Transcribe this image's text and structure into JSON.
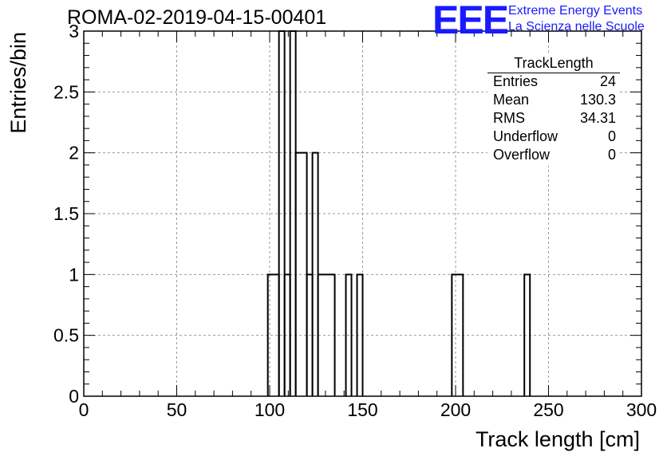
{
  "title": "ROMA-02-2019-04-15-00401",
  "logo": {
    "mark": "EEE",
    "line1": "Extreme Energy Events",
    "line2": "La Scienza nelle Scuole",
    "color": "#1a1aff"
  },
  "stats": {
    "title": "TrackLength",
    "rows": [
      {
        "key": "Entries",
        "value": "24"
      },
      {
        "key": "Mean",
        "value": "130.3"
      },
      {
        "key": "RMS",
        "value": "34.31"
      },
      {
        "key": "Underflow",
        "value": "0"
      },
      {
        "key": "Overflow",
        "value": "0"
      }
    ]
  },
  "chart_data": {
    "type": "histogram",
    "xlabel": "Track length [cm]",
    "ylabel": "Entries/bin",
    "xlim": [
      0,
      300
    ],
    "ylim": [
      0,
      3
    ],
    "grid": true,
    "bin_width": 3,
    "x_ticks": [
      0,
      50,
      100,
      150,
      200,
      250,
      300
    ],
    "y_ticks": [
      0,
      0.5,
      1,
      1.5,
      2,
      2.5,
      3
    ],
    "bins": [
      {
        "x0": 99,
        "x1": 105,
        "count": 1
      },
      {
        "x0": 105,
        "x1": 108,
        "count": 3
      },
      {
        "x0": 108,
        "x1": 111,
        "count": 1
      },
      {
        "x0": 111,
        "x1": 114,
        "count": 3
      },
      {
        "x0": 114,
        "x1": 120,
        "count": 2
      },
      {
        "x0": 120,
        "x1": 123,
        "count": 1
      },
      {
        "x0": 123,
        "x1": 126,
        "count": 2
      },
      {
        "x0": 126,
        "x1": 135,
        "count": 1
      },
      {
        "x0": 141,
        "x1": 144,
        "count": 1
      },
      {
        "x0": 147,
        "x1": 150,
        "count": 1
      },
      {
        "x0": 198,
        "x1": 204,
        "count": 1
      },
      {
        "x0": 237,
        "x1": 240,
        "count": 1
      }
    ],
    "line_color": "#000000"
  }
}
